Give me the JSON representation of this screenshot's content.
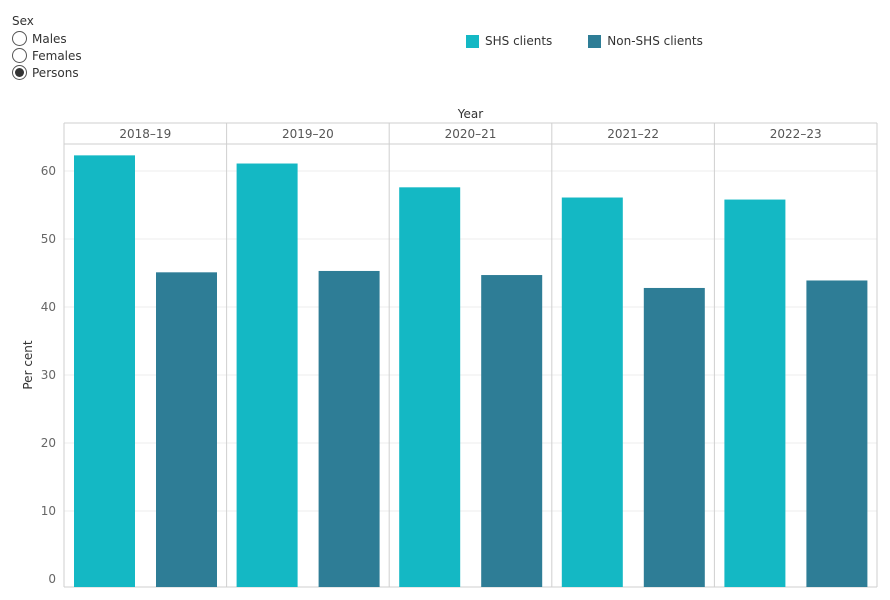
{
  "filter": {
    "title": "Sex",
    "options": [
      {
        "label": "Males",
        "checked": false
      },
      {
        "label": "Females",
        "checked": false
      },
      {
        "label": "Persons",
        "checked": true
      }
    ]
  },
  "legend": [
    {
      "label": "SHS clients",
      "color": "#14b8c4"
    },
    {
      "label": "Non-SHS clients",
      "color": "#2e7d96"
    }
  ],
  "chart_data": {
    "type": "bar",
    "xlabel": "Year",
    "ylabel": "Per cent",
    "ylim": [
      0,
      65
    ],
    "yticks": [
      0,
      10,
      20,
      30,
      40,
      50,
      60
    ],
    "grid": true,
    "legend_position": "top-right",
    "categories": [
      "2018–19",
      "2019–20",
      "2020–21",
      "2021–22",
      "2022–23"
    ],
    "series": [
      {
        "name": "SHS clients",
        "color": "#14b8c4",
        "values": [
          62.3,
          61.1,
          57.6,
          56.1,
          55.8
        ]
      },
      {
        "name": "Non-SHS clients",
        "color": "#2e7d96",
        "values": [
          45.1,
          45.3,
          44.7,
          42.8,
          43.9
        ]
      }
    ]
  }
}
